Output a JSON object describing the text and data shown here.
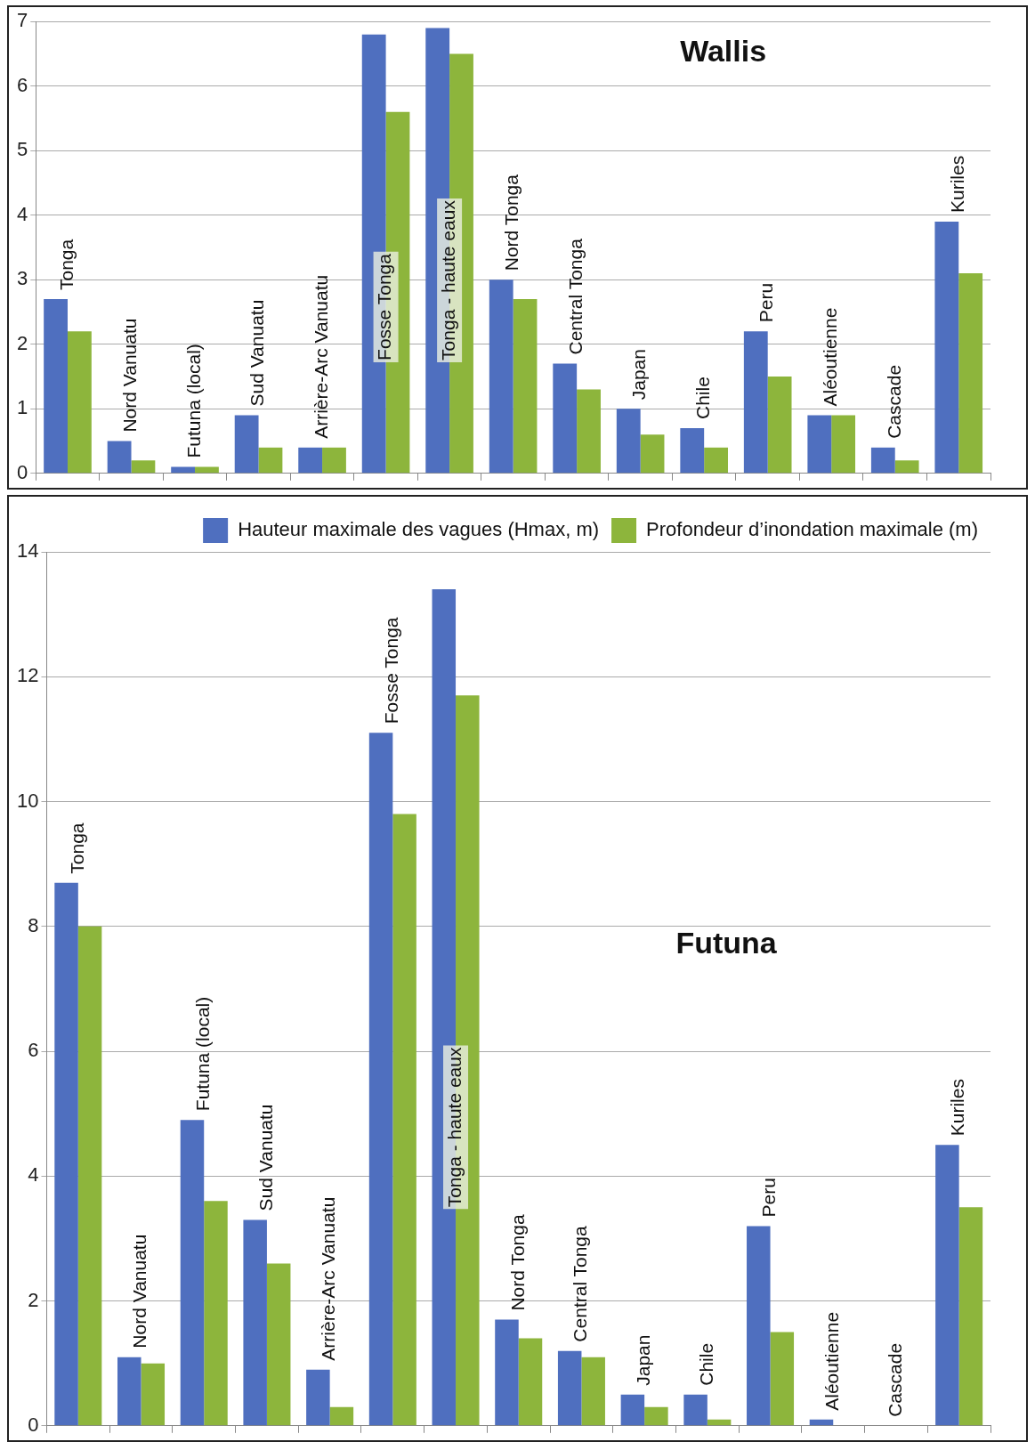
{
  "chart_data": [
    {
      "type": "bar",
      "title": "Wallis",
      "categories": [
        "Tonga",
        "Nord Vanuatu",
        "Futuna (local)",
        "Sud Vanuatu",
        "Arrière-Arc Vanuatu",
        "Fosse Tonga",
        "Tonga - haute eaux",
        "Nord Tonga",
        "Central Tonga",
        "Japan",
        "Chile",
        "Peru",
        "Aléoutienne",
        "Cascade",
        "Kuriles"
      ],
      "series": [
        {
          "color": "#4f6fbf",
          "values": [
            2.7,
            0.5,
            0.1,
            0.9,
            0.4,
            6.8,
            6.9,
            3.0,
            1.7,
            1.0,
            0.7,
            2.2,
            0.9,
            0.4,
            3.9
          ]
        },
        {
          "color": "#8db53c",
          "values": [
            2.2,
            0.2,
            0.1,
            0.4,
            0.4,
            5.6,
            6.5,
            2.7,
            1.3,
            0.6,
            0.4,
            1.5,
            0.9,
            0.2,
            3.1
          ]
        }
      ],
      "ylim": [
        0,
        7
      ],
      "yticks": [
        0,
        1,
        2,
        3,
        4,
        5,
        6,
        7
      ],
      "grid": "y",
      "legend": false
    },
    {
      "type": "bar",
      "title": "Futuna",
      "categories": [
        "Tonga",
        "Nord Vanuatu",
        "Futuna (local)",
        "Sud Vanuatu",
        "Arrière-Arc Vanuatu",
        "Fosse Tonga",
        "Tonga - haute eaux",
        "Nord Tonga",
        "Central Tonga",
        "Japan",
        "Chile",
        "Peru",
        "Aléoutienne",
        "Cascade",
        "Kuriles"
      ],
      "series": [
        {
          "name": "Hauteur maximale des vagues (Hmax, m)",
          "color": "#4f6fbf",
          "values": [
            8.7,
            1.1,
            4.9,
            3.3,
            0.9,
            11.1,
            13.4,
            1.7,
            1.2,
            0.5,
            0.5,
            3.2,
            0.1,
            0,
            4.5
          ]
        },
        {
          "name": "Profondeur d’inondation maximale (m)",
          "color": "#8db53c",
          "values": [
            8.0,
            1.0,
            3.6,
            2.6,
            0.3,
            9.8,
            11.7,
            1.4,
            1.1,
            0.3,
            0.1,
            1.5,
            0,
            0,
            3.5
          ]
        }
      ],
      "ylim": [
        0,
        14
      ],
      "yticks": [
        0,
        2,
        4,
        6,
        8,
        10,
        12,
        14
      ],
      "grid": "y",
      "legend": "top right"
    }
  ]
}
